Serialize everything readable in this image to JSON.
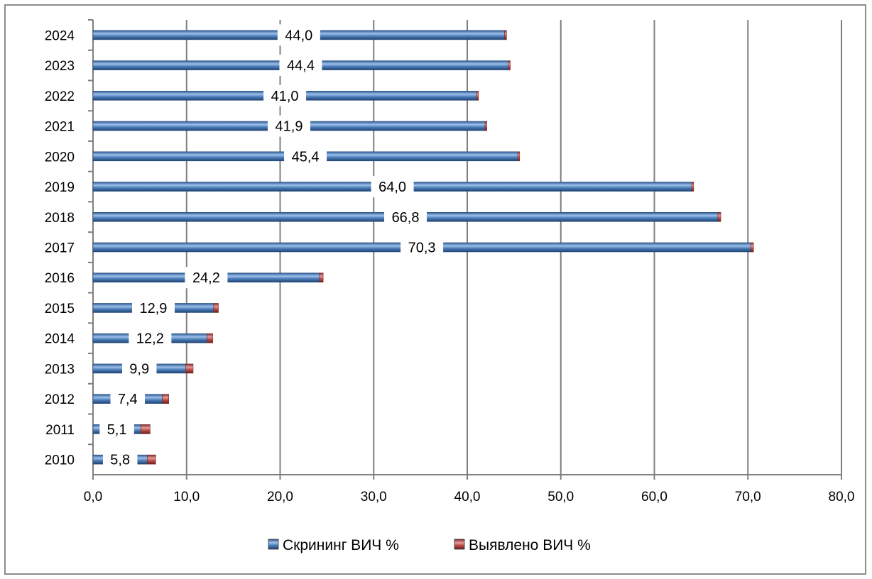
{
  "chart_data": {
    "type": "bar",
    "orientation": "horizontal",
    "stacked": true,
    "categories": [
      "2010",
      "2011",
      "2012",
      "2013",
      "2014",
      "2015",
      "2016",
      "2017",
      "2018",
      "2019",
      "2020",
      "2021",
      "2022",
      "2023",
      "2024"
    ],
    "series": [
      {
        "name": "Скрининг ВИЧ %",
        "color": "#4f81bd",
        "values": [
          5.8,
          5.1,
          7.4,
          9.9,
          12.2,
          12.9,
          24.2,
          70.3,
          66.8,
          64.0,
          45.4,
          41.9,
          41.0,
          44.4,
          44.0
        ],
        "data_labels": [
          "5,8",
          "5,1",
          "7,4",
          "9,9",
          "12,2",
          "12,9",
          "24,2",
          "70,3",
          "66,8",
          "64,0",
          "45,4",
          "41,9",
          "41,0",
          "44,4",
          "44,0"
        ]
      },
      {
        "name": "Выявлено ВИЧ %",
        "color": "#c0504d",
        "values": [
          0.9,
          1.0,
          0.7,
          0.8,
          0.6,
          0.5,
          0.4,
          0.3,
          0.3,
          0.2,
          0.2,
          0.2,
          0.2,
          0.2,
          0.2
        ]
      }
    ],
    "xlim": [
      0,
      80
    ],
    "x_ticks": [
      "0,0",
      "10,0",
      "20,0",
      "30,0",
      "40,0",
      "50,0",
      "60,0",
      "70,0",
      "80,0"
    ],
    "title": "",
    "xlabel": "",
    "ylabel": "",
    "grid": "vertical",
    "legend_position": "bottom"
  }
}
